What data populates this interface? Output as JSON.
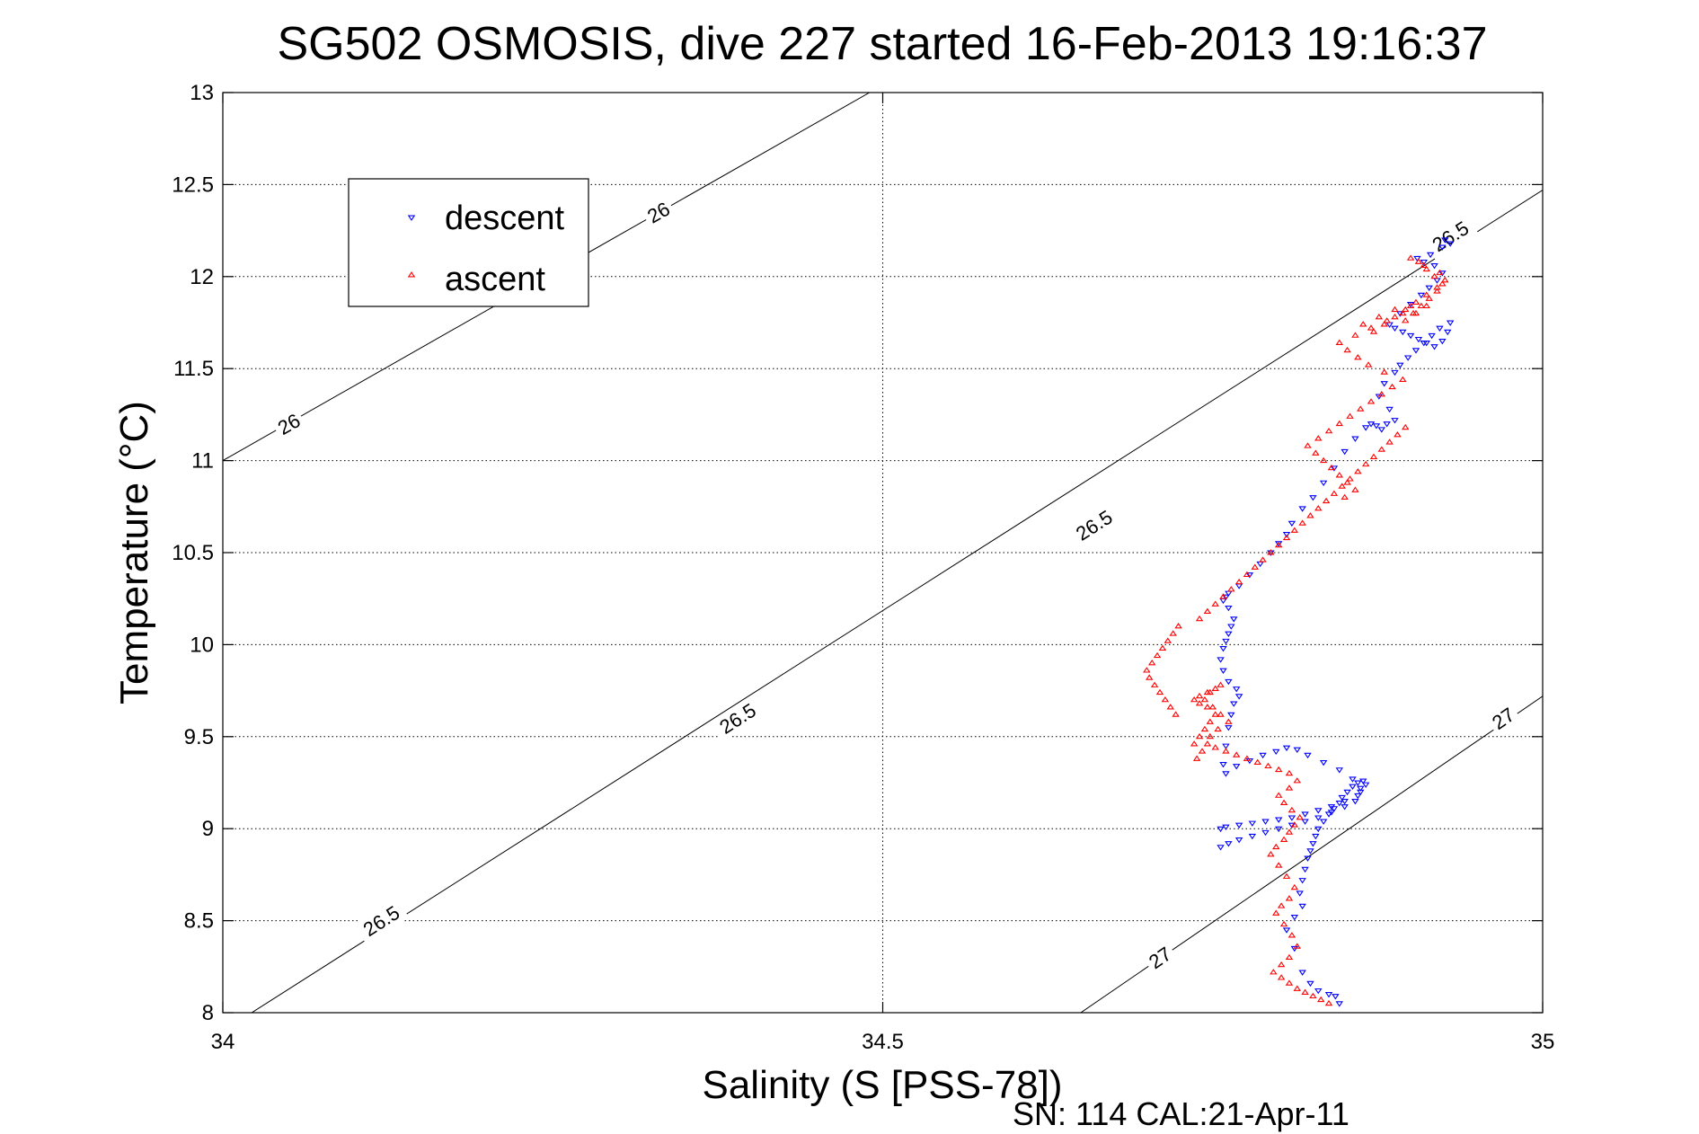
{
  "chart_data": {
    "type": "scatter",
    "title": "SG502 OSMOSIS, dive 227 started 16-Feb-2013 19:16:37",
    "xlabel": "Salinity (S [PSS-78])",
    "ylabel": "Temperature (°C)",
    "xlim": [
      34,
      35
    ],
    "ylim": [
      8,
      13
    ],
    "x_ticks": [
      34,
      34.5,
      35
    ],
    "x_tick_labels": [
      "34",
      "34.5",
      "35"
    ],
    "y_ticks": [
      8,
      8.5,
      9,
      9.5,
      10,
      10.5,
      11,
      11.5,
      12,
      12.5,
      13
    ],
    "y_tick_labels": [
      "8",
      "8.5",
      "9",
      "9.5",
      "10",
      "10.5",
      "11",
      "11.5",
      "12",
      "12.5",
      "13"
    ],
    "grid": true,
    "legend_position": "top-left",
    "footnote": "SN: 114  CAL:21-Apr-11",
    "isopycnals": [
      {
        "label": "26",
        "points": [
          [
            34.0,
            11.0
          ],
          [
            34.49,
            13.0
          ]
        ],
        "label_positions": [
          [
            34.05,
            11.2
          ],
          [
            34.33,
            12.35
          ]
        ]
      },
      {
        "label": "26.5",
        "points": [
          [
            34.0,
            7.9
          ],
          [
            35.0,
            12.47
          ]
        ],
        "label_positions": [
          [
            34.12,
            8.5
          ],
          [
            34.39,
            9.6
          ],
          [
            34.66,
            10.65
          ],
          [
            34.93,
            12.22
          ]
        ]
      },
      {
        "label": "27",
        "points": [
          [
            34.65,
            8.0
          ],
          [
            35.0,
            9.72
          ]
        ],
        "label_positions": [
          [
            34.71,
            8.3
          ],
          [
            34.97,
            9.6
          ]
        ]
      }
    ],
    "series": [
      {
        "name": "descent",
        "color": "#0000ff",
        "marker": "triangle-down",
        "x": [
          34.846,
          34.843,
          34.838,
          34.83,
          34.824,
          34.818,
          34.812,
          34.806,
          34.812,
          34.818,
          34.816,
          34.818,
          34.82,
          34.822,
          34.824,
          34.826,
          34.828,
          34.83,
          34.834,
          34.838,
          34.842,
          34.846,
          34.848,
          34.852,
          34.856,
          34.86,
          34.864,
          34.866,
          34.862,
          34.858,
          34.85,
          34.84,
          34.83,
          34.82,
          34.81,
          34.8,
          34.79,
          34.78,
          34.77,
          34.762,
          34.756,
          34.76,
          34.768,
          34.778,
          34.788,
          34.798,
          34.806,
          34.814,
          34.822,
          34.834,
          34.846,
          34.856,
          34.862,
          34.86,
          34.85,
          34.84,
          34.83,
          34.82,
          34.81,
          34.8,
          34.79,
          34.78,
          34.77,
          34.76,
          34.756,
          34.758,
          34.76,
          34.762,
          34.764,
          34.766,
          34.77,
          34.768,
          34.762,
          34.758,
          34.756,
          34.758,
          34.76,
          34.762,
          34.764,
          34.766,
          34.762,
          34.758,
          34.76,
          34.762,
          34.77,
          34.778,
          34.786,
          34.794,
          34.8,
          34.806,
          34.81,
          34.818,
          34.826,
          34.834,
          34.842,
          34.85,
          34.858,
          34.866,
          34.87,
          34.874,
          34.878,
          34.882,
          34.888,
          34.884,
          34.876,
          34.88,
          34.888,
          34.892,
          34.898,
          34.904,
          34.91,
          34.916,
          34.922,
          34.93,
          34.928,
          34.924,
          34.918,
          34.912,
          34.906,
          34.9,
          34.894,
          34.888,
          34.884,
          34.892,
          34.9,
          34.908,
          34.914,
          34.92,
          34.924,
          34.918,
          34.91,
          34.905,
          34.915,
          34.924,
          34.93,
          34.926
        ],
        "y": [
          8.05,
          8.09,
          8.1,
          8.12,
          8.16,
          8.22,
          8.35,
          8.45,
          8.52,
          8.58,
          8.65,
          8.72,
          8.78,
          8.84,
          8.88,
          8.92,
          8.96,
          9.0,
          9.04,
          9.08,
          9.11,
          9.14,
          9.17,
          9.2,
          9.23,
          9.25,
          9.26,
          9.24,
          9.2,
          9.15,
          9.12,
          9.09,
          9.06,
          9.04,
          9.02,
          9.0,
          8.98,
          8.96,
          8.94,
          8.92,
          8.9,
          9.3,
          9.34,
          9.37,
          9.4,
          9.42,
          9.44,
          9.43,
          9.4,
          9.36,
          9.32,
          9.27,
          9.22,
          9.18,
          9.15,
          9.12,
          9.1,
          9.08,
          9.06,
          9.05,
          9.04,
          9.03,
          9.02,
          9.01,
          9.0,
          9.35,
          9.45,
          9.55,
          9.62,
          9.68,
          9.72,
          9.76,
          9.8,
          9.86,
          9.92,
          9.98,
          10.02,
          10.06,
          10.1,
          10.14,
          10.2,
          10.24,
          10.26,
          10.28,
          10.32,
          10.38,
          10.44,
          10.5,
          10.55,
          10.6,
          10.66,
          10.74,
          10.8,
          10.88,
          10.96,
          11.05,
          11.12,
          11.18,
          11.2,
          11.19,
          11.17,
          11.2,
          11.22,
          11.28,
          11.35,
          11.42,
          11.48,
          11.52,
          11.56,
          11.6,
          11.64,
          11.68,
          11.72,
          11.75,
          11.7,
          11.65,
          11.62,
          11.64,
          11.66,
          11.68,
          11.7,
          11.72,
          11.74,
          11.8,
          11.85,
          11.9,
          11.94,
          11.98,
          12.02,
          12.06,
          12.08,
          12.1,
          12.12,
          12.16,
          12.18,
          12.2
        ]
      },
      {
        "name": "ascent",
        "color": "#ff0000",
        "marker": "triangle-up",
        "x": [
          34.838,
          34.832,
          34.826,
          34.82,
          34.814,
          34.808,
          34.802,
          34.796,
          34.802,
          34.808,
          34.814,
          34.81,
          34.804,
          34.798,
          34.802,
          34.808,
          34.812,
          34.806,
          34.8,
          34.794,
          34.798,
          34.804,
          34.808,
          34.812,
          34.816,
          34.81,
          34.804,
          34.8,
          34.808,
          34.814,
          34.808,
          34.8,
          34.792,
          34.784,
          34.776,
          34.768,
          34.76,
          34.752,
          34.746,
          34.748,
          34.754,
          34.762,
          34.756,
          34.75,
          34.744,
          34.748,
          34.756,
          34.752,
          34.746,
          34.74,
          34.736,
          34.74,
          34.746,
          34.752,
          34.748,
          34.744,
          34.74,
          34.736,
          34.742,
          34.738,
          34.722,
          34.718,
          34.714,
          34.71,
          34.706,
          34.702,
          34.7,
          34.704,
          34.708,
          34.712,
          34.716,
          34.72,
          34.724,
          34.74,
          34.746,
          34.752,
          34.758,
          34.764,
          34.77,
          34.776,
          34.782,
          34.788,
          34.794,
          34.8,
          34.806,
          34.812,
          34.818,
          34.824,
          34.83,
          34.836,
          34.842,
          34.848,
          34.854,
          34.86,
          34.866,
          34.872,
          34.878,
          34.884,
          34.89,
          34.896,
          34.85,
          34.858,
          34.852,
          34.846,
          34.84,
          34.834,
          34.828,
          34.822,
          34.83,
          34.838,
          34.846,
          34.854,
          34.862,
          34.87,
          34.878,
          34.886,
          34.894,
          34.88,
          34.868,
          34.86,
          34.852,
          34.846,
          34.858,
          34.87,
          34.882,
          34.894,
          34.9,
          34.888,
          34.876,
          34.864,
          34.872,
          34.88,
          34.888,
          34.896,
          34.904,
          34.912,
          34.92,
          34.926,
          34.922,
          34.91,
          34.9,
          34.906,
          34.912,
          34.918,
          34.924,
          34.92,
          34.914,
          34.908,
          34.902,
          34.896,
          34.904,
          34.912
        ],
        "y": [
          8.05,
          8.07,
          8.09,
          8.11,
          8.13,
          8.16,
          8.19,
          8.22,
          8.26,
          8.3,
          8.36,
          8.42,
          8.48,
          8.54,
          8.58,
          8.62,
          8.68,
          8.74,
          8.8,
          8.86,
          8.9,
          8.94,
          8.98,
          9.02,
          9.06,
          9.1,
          9.14,
          9.18,
          9.22,
          9.26,
          9.3,
          9.32,
          9.34,
          9.36,
          9.38,
          9.4,
          9.42,
          9.44,
          9.46,
          9.5,
          9.54,
          9.58,
          9.62,
          9.66,
          9.7,
          9.74,
          9.78,
          9.76,
          9.74,
          9.72,
          9.7,
          9.68,
          9.66,
          9.62,
          9.58,
          9.54,
          9.5,
          9.46,
          9.42,
          9.38,
          9.62,
          9.66,
          9.7,
          9.74,
          9.78,
          9.82,
          9.86,
          9.9,
          9.94,
          9.98,
          10.02,
          10.06,
          10.1,
          10.14,
          10.18,
          10.22,
          10.26,
          10.3,
          10.34,
          10.38,
          10.42,
          10.46,
          10.5,
          10.54,
          10.58,
          10.62,
          10.66,
          10.7,
          10.74,
          10.78,
          10.82,
          10.86,
          10.9,
          10.94,
          10.98,
          11.02,
          11.06,
          11.1,
          11.14,
          11.18,
          10.8,
          10.84,
          10.88,
          10.92,
          10.96,
          11.0,
          11.04,
          11.08,
          11.12,
          11.16,
          11.2,
          11.24,
          11.28,
          11.32,
          11.36,
          11.4,
          11.44,
          11.48,
          11.52,
          11.56,
          11.6,
          11.64,
          11.68,
          11.72,
          11.76,
          11.8,
          11.84,
          11.82,
          11.78,
          11.74,
          11.7,
          11.74,
          11.78,
          11.82,
          11.86,
          11.9,
          11.94,
          11.98,
          12.02,
          12.06,
          12.1,
          12.08,
          12.04,
          12.0,
          11.96,
          11.92,
          11.88,
          11.84,
          11.8,
          11.76,
          11.8,
          11.84
        ]
      }
    ]
  }
}
